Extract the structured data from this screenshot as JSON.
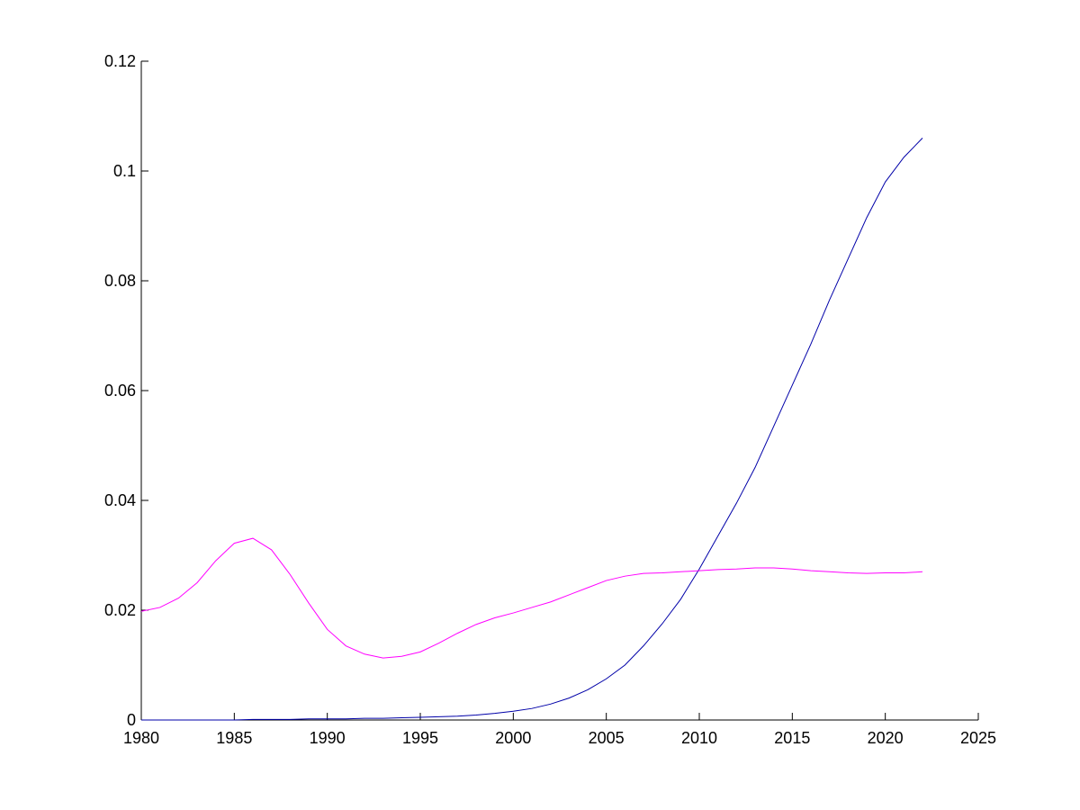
{
  "chart_data": {
    "type": "line",
    "x": [
      1980,
      1981,
      1982,
      1983,
      1984,
      1985,
      1986,
      1987,
      1988,
      1989,
      1990,
      1991,
      1992,
      1993,
      1994,
      1995,
      1996,
      1997,
      1998,
      1999,
      2000,
      2001,
      2002,
      2003,
      2004,
      2005,
      2006,
      2007,
      2008,
      2009,
      2010,
      2011,
      2012,
      2013,
      2014,
      2015,
      2016,
      2017,
      2018,
      2019,
      2020,
      2021,
      2022
    ],
    "series": [
      {
        "color": "#0000a8",
        "values": [
          0,
          0,
          0,
          0,
          0,
          0,
          0.0001,
          0.0001,
          0.0001,
          0.0002,
          0.0002,
          0.0002,
          0.0003,
          0.0003,
          0.0004,
          0.0005,
          0.0006,
          0.0007,
          0.0009,
          0.0012,
          0.0016,
          0.0021,
          0.0029,
          0.004,
          0.0055,
          0.0075,
          0.01,
          0.0135,
          0.0175,
          0.022,
          0.0275,
          0.0335,
          0.0395,
          0.046,
          0.0535,
          0.061,
          0.0685,
          0.0765,
          0.084,
          0.0915,
          0.098,
          0.1025,
          0.106
        ]
      },
      {
        "color": "#ff00ff",
        "values": [
          0.0198,
          0.0205,
          0.0222,
          0.025,
          0.029,
          0.0322,
          0.0331,
          0.031,
          0.0265,
          0.0213,
          0.0165,
          0.0135,
          0.012,
          0.0113,
          0.0116,
          0.0124,
          0.014,
          0.0158,
          0.0174,
          0.0186,
          0.0195,
          0.0205,
          0.0215,
          0.0228,
          0.0241,
          0.0254,
          0.0262,
          0.0267,
          0.0268,
          0.027,
          0.0272,
          0.0274,
          0.0275,
          0.0277,
          0.0277,
          0.0275,
          0.0272,
          0.027,
          0.0268,
          0.0267,
          0.0268,
          0.0268,
          0.027
        ]
      }
    ],
    "xlim": [
      1980,
      2025
    ],
    "xticks": [
      1980,
      1985,
      1990,
      1995,
      2000,
      2005,
      2010,
      2015,
      2020,
      2025
    ],
    "ylim": [
      0,
      0.12
    ],
    "yticks": [
      0,
      0.02,
      0.04,
      0.06,
      0.08,
      0.1,
      0.12
    ]
  }
}
